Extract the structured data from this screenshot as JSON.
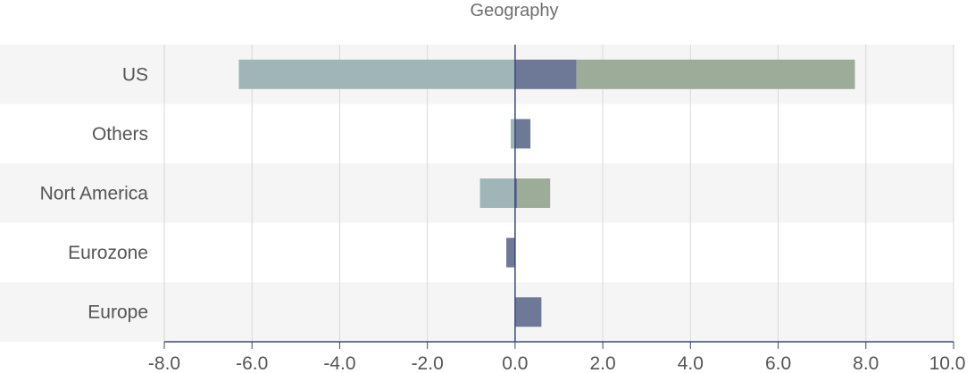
{
  "chart_data": {
    "type": "bar",
    "orientation": "horizontal",
    "stacked": true,
    "title": "Geography",
    "categories": [
      "US",
      "Others",
      "Nort America",
      "Eurozone",
      "Europe"
    ],
    "series": [
      {
        "color": "#9fb5b8",
        "values": [
          -6.3,
          -0.1,
          -0.8,
          0.0,
          0.0
        ]
      },
      {
        "color": "#6e7897",
        "values": [
          1.4,
          0.35,
          0.05,
          -0.2,
          0.6
        ]
      },
      {
        "color": "#9dac98",
        "values": [
          6.35,
          0.0,
          0.75,
          0.0,
          0.0
        ]
      }
    ],
    "xlim": [
      -8.0,
      10.0
    ],
    "xticks": [
      "-8.0",
      "-6.0",
      "-4.0",
      "-2.0",
      "0.0",
      "2.0",
      "4.0",
      "6.0",
      "8.0",
      "10.0"
    ],
    "grid": true,
    "legend": "none"
  }
}
